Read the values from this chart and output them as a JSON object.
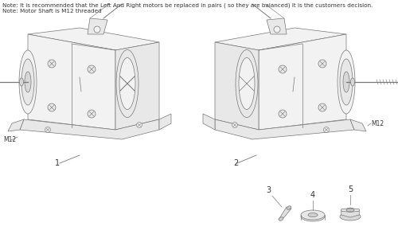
{
  "title_note1": "Note: It is recommended that the Left And Right motors be replaced in pairs ( so they are balanced) it is the customers decision.",
  "title_note2": "Note: Motor Shaft is M12 threaded",
  "label_m12_left": "M12",
  "label_m12_right": "M12",
  "label_1": "1",
  "label_2": "2",
  "label_3": "3",
  "label_4": "4",
  "label_5": "5",
  "bg_color": "#ffffff",
  "line_color": "#777777",
  "text_color": "#333333",
  "note_fontsize": 5.2,
  "label_fontsize": 7,
  "fig_width": 5.0,
  "fig_height": 2.99,
  "dpi": 100
}
